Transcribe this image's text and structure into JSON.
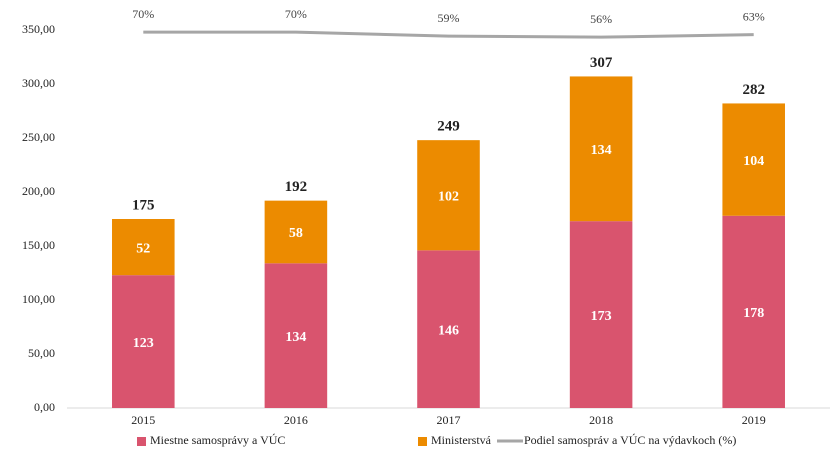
{
  "chart_data": {
    "type": "bar",
    "stacked": true,
    "categories": [
      "2015",
      "2016",
      "2017",
      "2018",
      "2019"
    ],
    "series": [
      {
        "name": "Miestne samosprávy  a VÚC",
        "color": "#d9546e",
        "values": [
          123,
          134,
          146,
          173,
          178
        ]
      },
      {
        "name": "Ministerstvá",
        "color": "#ec8b00",
        "values": [
          52,
          58,
          102,
          134,
          104
        ]
      },
      {
        "name": "Podiel samospráv a VÚC na výdavkoch (%)",
        "color": "#a6a6a6",
        "type": "line",
        "axis": "y2",
        "values": [
          70,
          70,
          59,
          56,
          63
        ],
        "value_labels": [
          "70%",
          "70%",
          "59%",
          "56%",
          "63%"
        ]
      }
    ],
    "totals": [
      175,
      192,
      249,
      307,
      282
    ],
    "ylim": [
      0,
      350
    ],
    "yticks": [
      {
        "value": 0,
        "label": "0,00"
      },
      {
        "value": 50,
        "label": "50,00"
      },
      {
        "value": 100,
        "label": "100,00"
      },
      {
        "value": 150,
        "label": "150,00"
      },
      {
        "value": 200,
        "label": "200,00"
      },
      {
        "value": 250,
        "label": "250,00"
      },
      {
        "value": 300,
        "label": "300,00"
      },
      {
        "value": 350,
        "label": "350,00"
      }
    ],
    "y2lim": [
      -980,
      76
    ],
    "grid": false,
    "legend": "bottom"
  }
}
